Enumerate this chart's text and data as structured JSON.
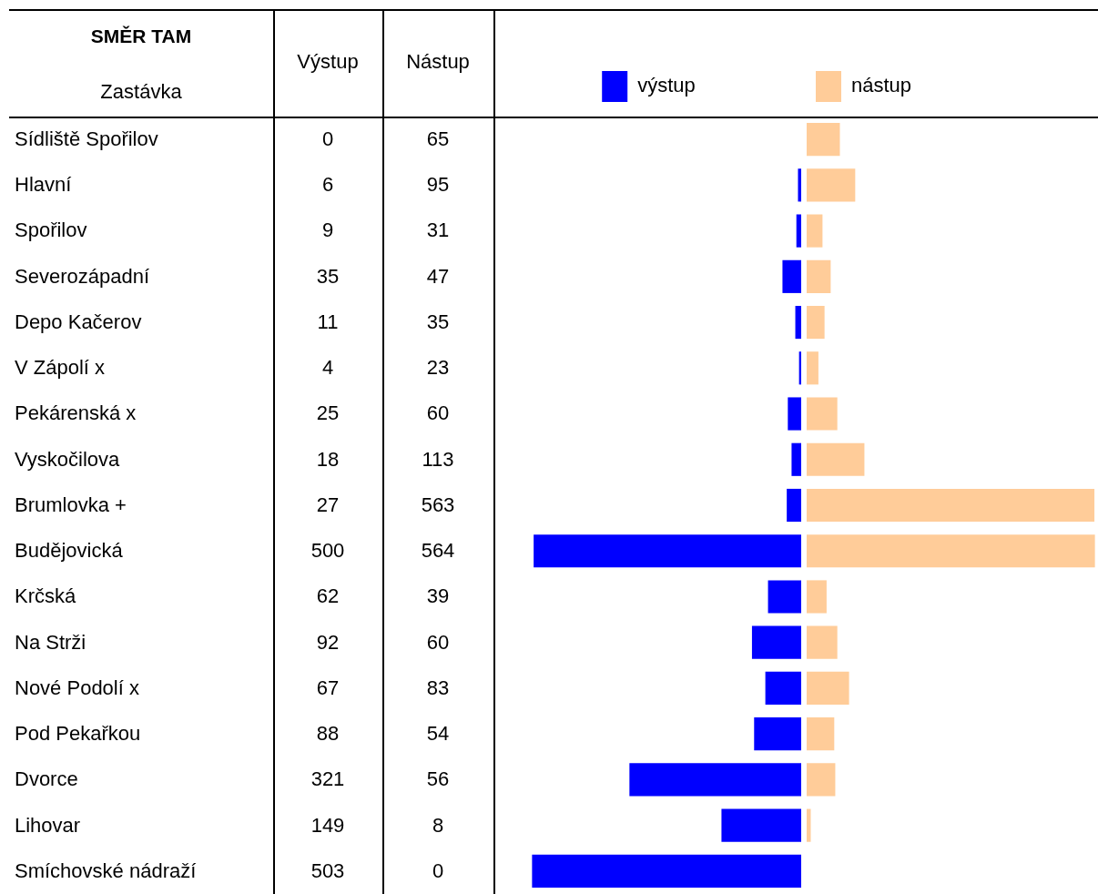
{
  "chart_data": [
    {
      "type": "bar",
      "orientation": "horizontal",
      "title": "SMĚR TAM",
      "ylabel": "Zastávka",
      "annotations": [
        "Výstup"
      ],
      "categories": [
        "Sídliště Spořilov",
        "Hlavní",
        "Spořilov",
        "Severozápadní",
        "Depo Kačerov",
        "V Zápolí x",
        "Pekárenská x",
        "Vyskočilova",
        "Brumlovka +",
        "Budějovická",
        "Krčská",
        "Na Strži",
        "Nové Podolí x",
        "Pod Pekařkou",
        "Dvorce",
        "Lihovar",
        "Smíchovské nádraží"
      ],
      "series": [
        {
          "name": "výstup",
          "color": "#0000ff",
          "values": [
            0,
            6,
            9,
            35,
            11,
            4,
            25,
            18,
            27,
            500,
            62,
            92,
            67,
            88,
            321,
            149,
            503
          ]
        }
      ],
      "xlim": [
        570,
        0
      ],
      "data_labels": true,
      "legend": "top",
      "tick_labels": "y"
    },
    {
      "type": "bar",
      "orientation": "horizontal",
      "annotations": [
        "Nástup"
      ],
      "categories": [
        null,
        null,
        null,
        null,
        null,
        null,
        null,
        null,
        null,
        null,
        null,
        null,
        null,
        null,
        null,
        null,
        null
      ],
      "series": [
        {
          "name": "nástup",
          "color": "#ffcc99",
          "values": [
            65,
            95,
            31,
            47,
            35,
            23,
            60,
            113,
            563,
            564,
            39,
            60,
            83,
            54,
            56,
            8,
            0
          ]
        }
      ],
      "xlim": [
        0,
        570
      ],
      "data_labels": true,
      "legend": "top left",
      "tick_labels": false
    }
  ]
}
